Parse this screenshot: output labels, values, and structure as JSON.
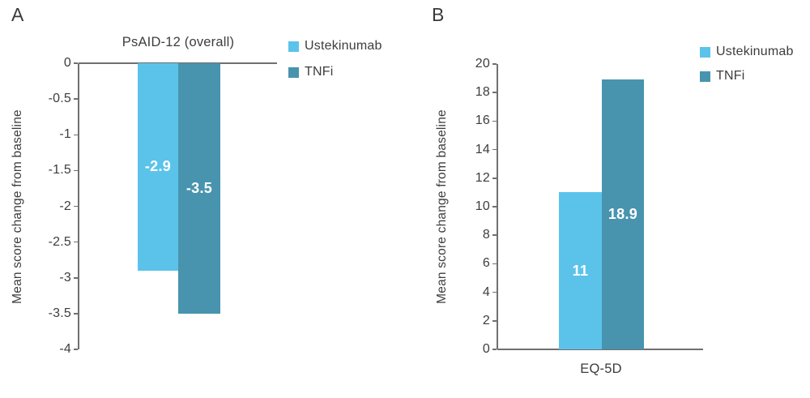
{
  "figure": {
    "panels": {
      "a": {
        "label": "A",
        "title": "PsAID-12 (overall)",
        "ylabel": "Mean score change from baseline"
      },
      "b": {
        "label": "B",
        "xlabel": "EQ-5D",
        "ylabel": "Mean score change from baseline"
      }
    }
  },
  "legend": {
    "items": [
      {
        "label": "Ustekinumab",
        "color": "#5BC3EA"
      },
      {
        "label": "TNFi",
        "color": "#4894AE"
      }
    ]
  },
  "colors": {
    "ustekinumab": "#5BC3EA",
    "tnfi": "#4894AE",
    "axis": "#707070",
    "text": "#3D3D3D",
    "bar_label": "#FFFFFF"
  },
  "chart_data": [
    {
      "id": "A",
      "type": "bar",
      "title": "PsAID-12 (overall)",
      "categories": [
        "PsAID-12 (overall)"
      ],
      "series": [
        {
          "name": "Ustekinumab",
          "values": [
            -2.9
          ],
          "labels": [
            "-2.9"
          ],
          "color": "#5BC3EA"
        },
        {
          "name": "TNFi",
          "values": [
            -3.5
          ],
          "labels": [
            "-3.5"
          ],
          "color": "#4894AE"
        }
      ],
      "xlabel": "",
      "ylabel": "Mean score change from baseline",
      "ylim": [
        -4,
        0
      ],
      "yticks": [
        0,
        -0.5,
        -1,
        -1.5,
        -2,
        -2.5,
        -3,
        -3.5,
        -4
      ],
      "ytick_labels": [
        "0",
        "-0.5",
        "-1",
        "-1.5",
        "-2",
        "-2.5",
        "-3",
        "-3.5",
        "-4"
      ],
      "grid": false,
      "legend_position": "top-right",
      "bar_labels_inside": true
    },
    {
      "id": "B",
      "type": "bar",
      "title": "",
      "categories": [
        "EQ-5D"
      ],
      "series": [
        {
          "name": "Ustekinumab",
          "values": [
            11
          ],
          "labels": [
            "11"
          ],
          "color": "#5BC3EA"
        },
        {
          "name": "TNFi",
          "values": [
            18.9
          ],
          "labels": [
            "18.9"
          ],
          "color": "#4894AE"
        }
      ],
      "xlabel": "EQ-5D",
      "ylabel": "Mean score change from baseline",
      "ylim": [
        0,
        20
      ],
      "yticks": [
        20,
        18,
        16,
        14,
        12,
        10,
        8,
        6,
        4,
        2,
        0
      ],
      "ytick_labels": [
        "20",
        "18",
        "16",
        "14",
        "12",
        "10",
        "8",
        "6",
        "4",
        "2",
        "0"
      ],
      "grid": false,
      "legend_position": "top-right",
      "bar_labels_inside": true
    }
  ]
}
